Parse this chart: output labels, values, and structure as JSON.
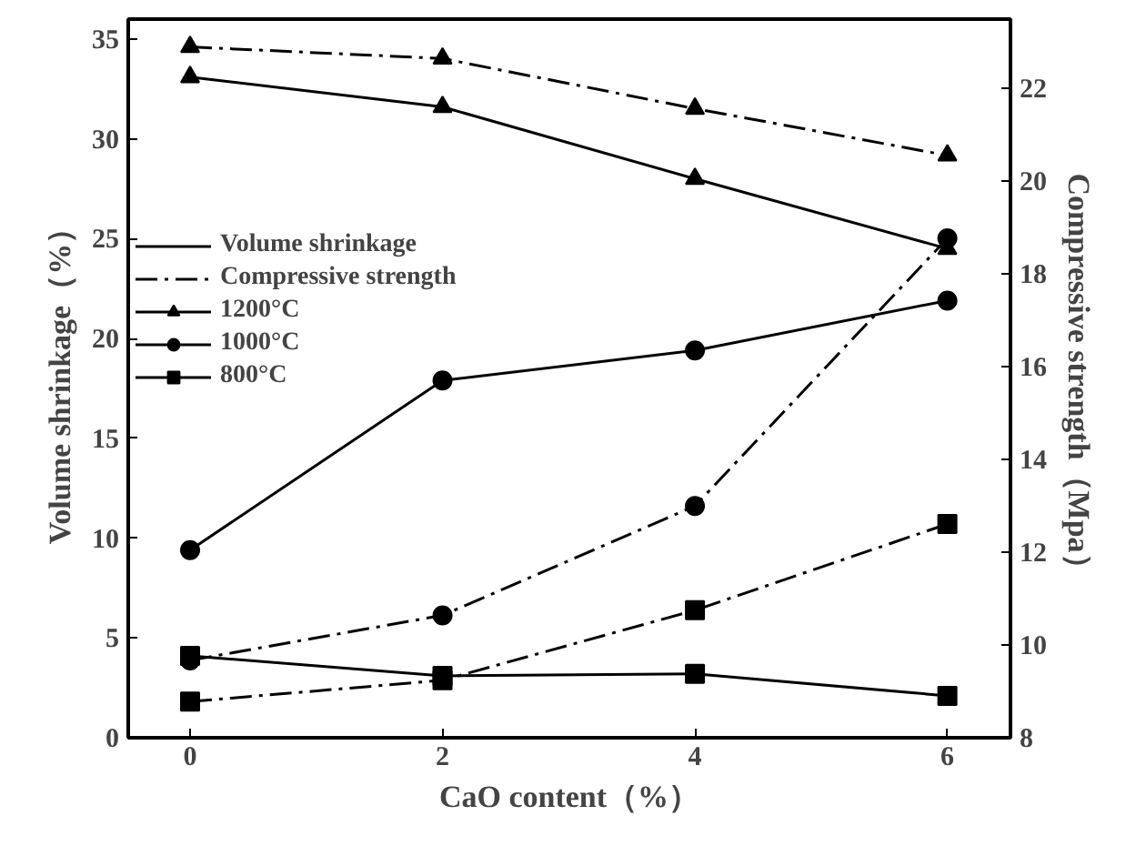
{
  "chart_data": {
    "type": "line",
    "xlabel": "CaO content（%）",
    "ylabel": "Volume shrinkage（%）",
    "y2label": "Compressive strength（Mpa）",
    "x": [
      0,
      2,
      4,
      6
    ],
    "xlim": [
      -0.49,
      6.5
    ],
    "xticks": [
      0,
      2,
      4,
      6
    ],
    "ylim": [
      0,
      36
    ],
    "yticks": [
      0,
      5,
      10,
      15,
      20,
      25,
      30,
      35
    ],
    "y2lim": [
      8,
      23.5
    ],
    "y2ticks": [
      8,
      10,
      12,
      14,
      16,
      18,
      20,
      22
    ],
    "legend": "top left",
    "grid": false,
    "annotations": [
      "Volume shrinkage",
      "Compressive strength"
    ],
    "series": [
      {
        "name": "1200°C",
        "color": "#000000",
        "marker": "triangle",
        "line_style": "solid",
        "values": [
          33.1,
          31.6,
          28.0,
          24.5
        ]
      },
      {
        "name": "1000°C",
        "color": "#000000",
        "marker": "circle",
        "line_style": "solid",
        "values": [
          9.4,
          17.9,
          19.4,
          21.9
        ]
      },
      {
        "name": "800°C",
        "color": "#000000",
        "marker": "square",
        "line_style": "solid",
        "values": [
          4.1,
          3.1,
          3.2,
          2.1
        ]
      },
      {
        "color": "#000000",
        "marker": "triangle",
        "line_style": "dashdot",
        "axis": "y2",
        "values": [
          22.9,
          22.65,
          21.57,
          20.56
        ]
      },
      {
        "color": "#000000",
        "marker": "circle",
        "line_style": "dashdot",
        "axis": "y2",
        "values": [
          9.67,
          10.64,
          13.0,
          18.77
        ]
      },
      {
        "color": "#000000",
        "marker": "square",
        "line_style": "dashdot",
        "axis": "y2",
        "values": [
          8.78,
          9.24,
          10.75,
          12.61
        ]
      }
    ]
  }
}
